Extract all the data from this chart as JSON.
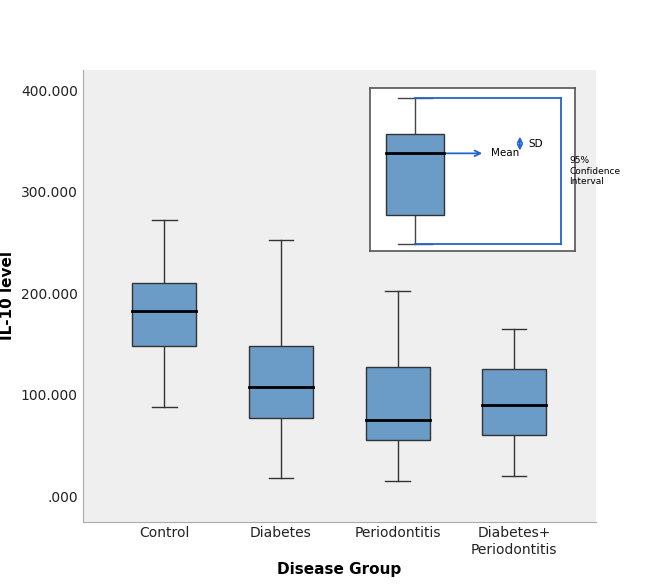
{
  "categories": [
    "Control",
    "Diabetes",
    "Periodontitis",
    "Diabetes+\nPeriodontitis"
  ],
  "xlabel": "Disease Group",
  "ylabel": "IL-10 level",
  "yticks": [
    0,
    100000,
    200000,
    300000,
    400000
  ],
  "ytick_labels": [
    ".000",
    "100.000",
    "200.000",
    "300.000",
    "400.000"
  ],
  "ylim": [
    -25000,
    420000
  ],
  "xlim": [
    0.3,
    4.7
  ],
  "box_color": "#6b9bc7",
  "box_edge_color": "#333333",
  "whisker_color": "#333333",
  "median_color": "#000000",
  "boxes": [
    {
      "q1": 148000,
      "median": 183000,
      "q3": 210000,
      "whisker_low": 88000,
      "whisker_high": 272000
    },
    {
      "q1": 77000,
      "median": 108000,
      "q3": 148000,
      "whisker_low": 18000,
      "whisker_high": 253000
    },
    {
      "q1": 55000,
      "median": 75000,
      "q3": 127000,
      "whisker_low": 15000,
      "whisker_high": 202000
    },
    {
      "q1": 60000,
      "median": 90000,
      "q3": 125000,
      "whisker_low": 20000,
      "whisker_high": 165000
    }
  ],
  "inset_box_color": "#6b9bc7",
  "inset_arrow_color": "#2266cc",
  "inset_line_color": "#2266cc",
  "background_color": "#efefef",
  "figure_bg": "#ffffff",
  "box_width": 0.55,
  "positions": [
    1,
    2,
    3,
    4
  ]
}
